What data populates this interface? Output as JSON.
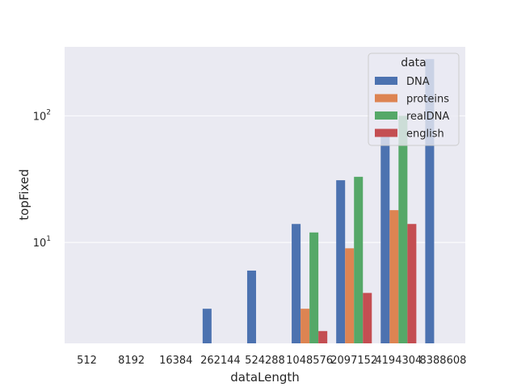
{
  "chart_data": {
    "type": "bar",
    "title": "",
    "xlabel": "dataLength",
    "ylabel": "topFixed",
    "yscale": "log",
    "ylim": [
      1.6,
      350
    ],
    "grid": true,
    "background": "#eaeaf2",
    "categories": [
      "512",
      "8192",
      "16384",
      "262144",
      "524288",
      "1048576",
      "2097152",
      "4194304",
      "8388608"
    ],
    "series": [
      {
        "name": "DNA",
        "color": "#4c72b0",
        "values": [
          null,
          null,
          null,
          3,
          6,
          14,
          31,
          70,
          280
        ]
      },
      {
        "name": "proteins",
        "color": "#dd8452",
        "values": [
          null,
          null,
          null,
          null,
          null,
          3,
          9,
          18,
          null
        ]
      },
      {
        "name": "realDNA",
        "color": "#55a868",
        "values": [
          null,
          null,
          null,
          null,
          null,
          12,
          33,
          100,
          null
        ]
      },
      {
        "name": "english",
        "color": "#c44e52",
        "values": [
          null,
          null,
          null,
          null,
          null,
          2,
          4,
          14,
          null
        ]
      }
    ],
    "yticks": [
      {
        "value": 10,
        "base": "10",
        "exp": "1"
      },
      {
        "value": 100,
        "base": "10",
        "exp": "2"
      }
    ],
    "legend": {
      "title": "data",
      "placement": "top-right"
    }
  }
}
